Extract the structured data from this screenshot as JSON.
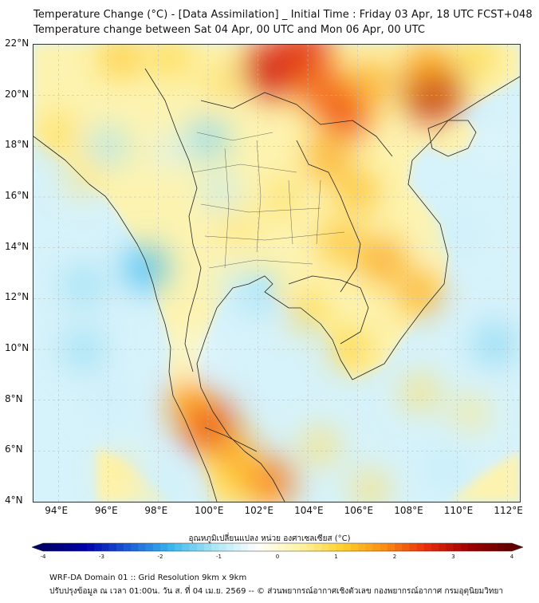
{
  "header": {
    "title_line1": "Temperature Change (°C) - [Data Assimilation] _ Initial Time : Friday 03 Apr, 18 UTC FCST+048",
    "title_line2": "Temperature change between Sat 04 Apr, 00 UTC and Mon 06 Apr, 00 UTC"
  },
  "map": {
    "lat_labels": [
      "22°N",
      "20°N",
      "18°N",
      "16°N",
      "14°N",
      "12°N",
      "10°N",
      "8°N",
      "6°N",
      "4°N"
    ],
    "lon_labels": [
      "94°E",
      "96°E",
      "98°E",
      "100°E",
      "102°E",
      "104°E",
      "106°E",
      "108°E",
      "110°E",
      "112°E"
    ],
    "lat_range": [
      4,
      22
    ],
    "lon_range": [
      93,
      112.5
    ],
    "land_base_color": "#fdf3b0",
    "ocean_base_color": "#d6f2fa",
    "anomalies": [
      {
        "lon": 94.0,
        "lat": 18.5,
        "value": 0.9
      },
      {
        "lon": 95.0,
        "lat": 16.8,
        "value": 0.7
      },
      {
        "lon": 96.5,
        "lat": 21.5,
        "value": 1.2
      },
      {
        "lon": 98.5,
        "lat": 21.5,
        "value": 1.0
      },
      {
        "lon": 100.5,
        "lat": 20.5,
        "value": 0.8
      },
      {
        "lon": 102.5,
        "lat": 21.0,
        "value": 2.8
      },
      {
        "lon": 103.8,
        "lat": 21.7,
        "value": 2.6
      },
      {
        "lon": 104.5,
        "lat": 20.3,
        "value": 2.1
      },
      {
        "lon": 105.5,
        "lat": 19.3,
        "value": 2.3
      },
      {
        "lon": 106.5,
        "lat": 20.5,
        "value": 1.5
      },
      {
        "lon": 109.0,
        "lat": 20.2,
        "value": 3.0
      },
      {
        "lon": 108.8,
        "lat": 21.2,
        "value": 1.6
      },
      {
        "lon": 110.8,
        "lat": 21.5,
        "value": 1.0
      },
      {
        "lon": 104.8,
        "lat": 17.5,
        "value": 1.5
      },
      {
        "lon": 106.0,
        "lat": 16.2,
        "value": 1.3
      },
      {
        "lon": 103.0,
        "lat": 16.0,
        "value": 0.8
      },
      {
        "lon": 101.2,
        "lat": 14.8,
        "value": 0.7
      },
      {
        "lon": 105.3,
        "lat": 14.2,
        "value": 1.3
      },
      {
        "lon": 107.0,
        "lat": 13.5,
        "value": 1.6
      },
      {
        "lon": 108.5,
        "lat": 12.2,
        "value": 1.5
      },
      {
        "lon": 104.0,
        "lat": 11.5,
        "value": 1.0
      },
      {
        "lon": 105.7,
        "lat": 10.0,
        "value": 1.1
      },
      {
        "lon": 100.0,
        "lat": 7.0,
        "value": 2.6
      },
      {
        "lon": 99.3,
        "lat": 7.8,
        "value": 1.8
      },
      {
        "lon": 101.0,
        "lat": 6.0,
        "value": 1.6
      },
      {
        "lon": 102.5,
        "lat": 4.8,
        "value": 2.0
      },
      {
        "lon": 101.0,
        "lat": 4.8,
        "value": 1.2
      },
      {
        "lon": 104.5,
        "lat": 6.2,
        "value": 0.8
      },
      {
        "lon": 108.5,
        "lat": 8.3,
        "value": 0.8
      },
      {
        "lon": 110.5,
        "lat": 7.5,
        "value": 0.6
      },
      {
        "lon": 106.5,
        "lat": 4.5,
        "value": 0.8
      },
      {
        "lon": 96.5,
        "lat": 5.2,
        "value": 0.5
      },
      {
        "lon": 97.5,
        "lat": 13.2,
        "value": -1.7
      },
      {
        "lon": 95.0,
        "lat": 12.5,
        "value": -1.2
      },
      {
        "lon": 95.0,
        "lat": 10.0,
        "value": -1.2
      },
      {
        "lon": 96.0,
        "lat": 18.0,
        "value": -1.1
      },
      {
        "lon": 98.5,
        "lat": 17.8,
        "value": -0.7
      },
      {
        "lon": 100.0,
        "lat": 18.3,
        "value": -1.3
      },
      {
        "lon": 100.5,
        "lat": 16.2,
        "value": -0.9
      },
      {
        "lon": 102.0,
        "lat": 12.3,
        "value": -1.2
      },
      {
        "lon": 101.0,
        "lat": 12.5,
        "value": -0.8
      },
      {
        "lon": 111.5,
        "lat": 10.2,
        "value": -1.3
      },
      {
        "lon": 110.0,
        "lat": 14.5,
        "value": -0.8
      },
      {
        "lon": 109.5,
        "lat": 5.3,
        "value": -0.9
      },
      {
        "lon": 98.0,
        "lat": 4.5,
        "value": -0.8
      },
      {
        "lon": 96.0,
        "lat": 8.0,
        "value": -0.8
      },
      {
        "lon": 99.5,
        "lat": 10.0,
        "value": -0.5
      },
      {
        "lon": 111.5,
        "lat": 18.0,
        "value": -0.6
      }
    ]
  },
  "colorbar": {
    "title": "อุณหภูมิเปลี่ยนแปลง หน่วย องศาเซลเซียส (°C)",
    "min": -4,
    "max": 4,
    "tick_labels": [
      "-4",
      "-3",
      "-2",
      "-1",
      "0",
      "1",
      "2",
      "3",
      "4"
    ],
    "color_stops": [
      "#000066",
      "#0000aa",
      "#1c5cd8",
      "#39b6ee",
      "#a9e6f5",
      "#ffffff",
      "#fff5a8",
      "#fed12e",
      "#fb8e12",
      "#e92b0c",
      "#9e0000",
      "#600000"
    ]
  },
  "footer": {
    "line1": "WRF-DA Domain 01 :: Grid Resolution 9km x 9km",
    "line2": "ปรับปรุงข้อมูล ณ เวลา 01:00น. วัน ส. ที่ 04 เม.ย. 2569 -- © ส่วนพยากรณ์อากาศเชิงตัวเลข กองพยากรณ์อากาศ กรมอุตุนิยมวิทยา"
  }
}
